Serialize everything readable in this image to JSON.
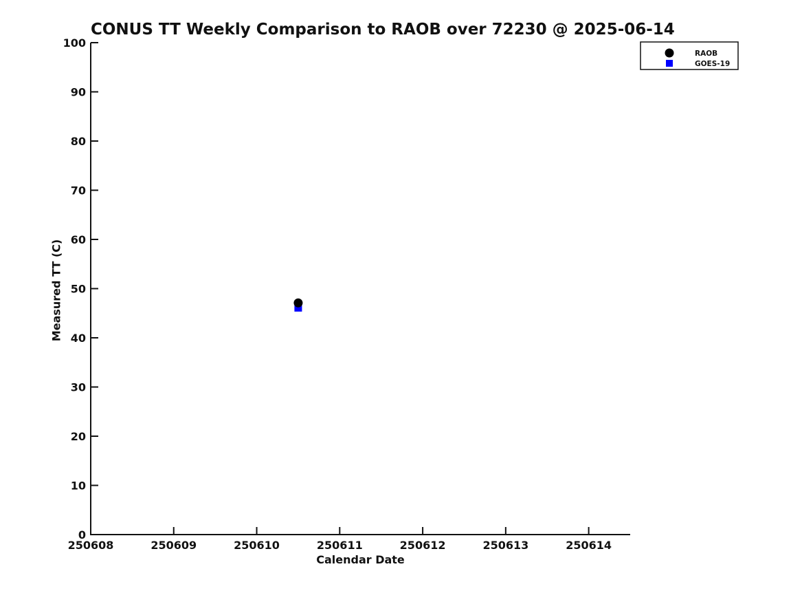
{
  "chart_data": {
    "type": "scatter",
    "title": "CONUS TT Weekly Comparison to RAOB over 72230 @ 2025-06-14",
    "xlabel": "Calendar Date",
    "ylabel": "Measured TT (C)",
    "xlim": [
      250608,
      250614.5
    ],
    "ylim": [
      0,
      100
    ],
    "xticks": [
      250608,
      250609,
      250610,
      250611,
      250612,
      250613,
      250614
    ],
    "yticks": [
      0,
      10,
      20,
      30,
      40,
      50,
      60,
      70,
      80,
      90,
      100
    ],
    "grid": false,
    "background_color": "#ffffff",
    "axis_color": "#111111",
    "legend_position": "top-right",
    "series": [
      {
        "name": "RAOB",
        "marker": "circle",
        "color": "#000000",
        "points": [
          {
            "x": 250610.5,
            "y": 47.1
          }
        ]
      },
      {
        "name": "GOES-19",
        "marker": "square",
        "color": "#0000ff",
        "points": [
          {
            "x": 250610.5,
            "y": 46.1
          }
        ]
      }
    ]
  }
}
